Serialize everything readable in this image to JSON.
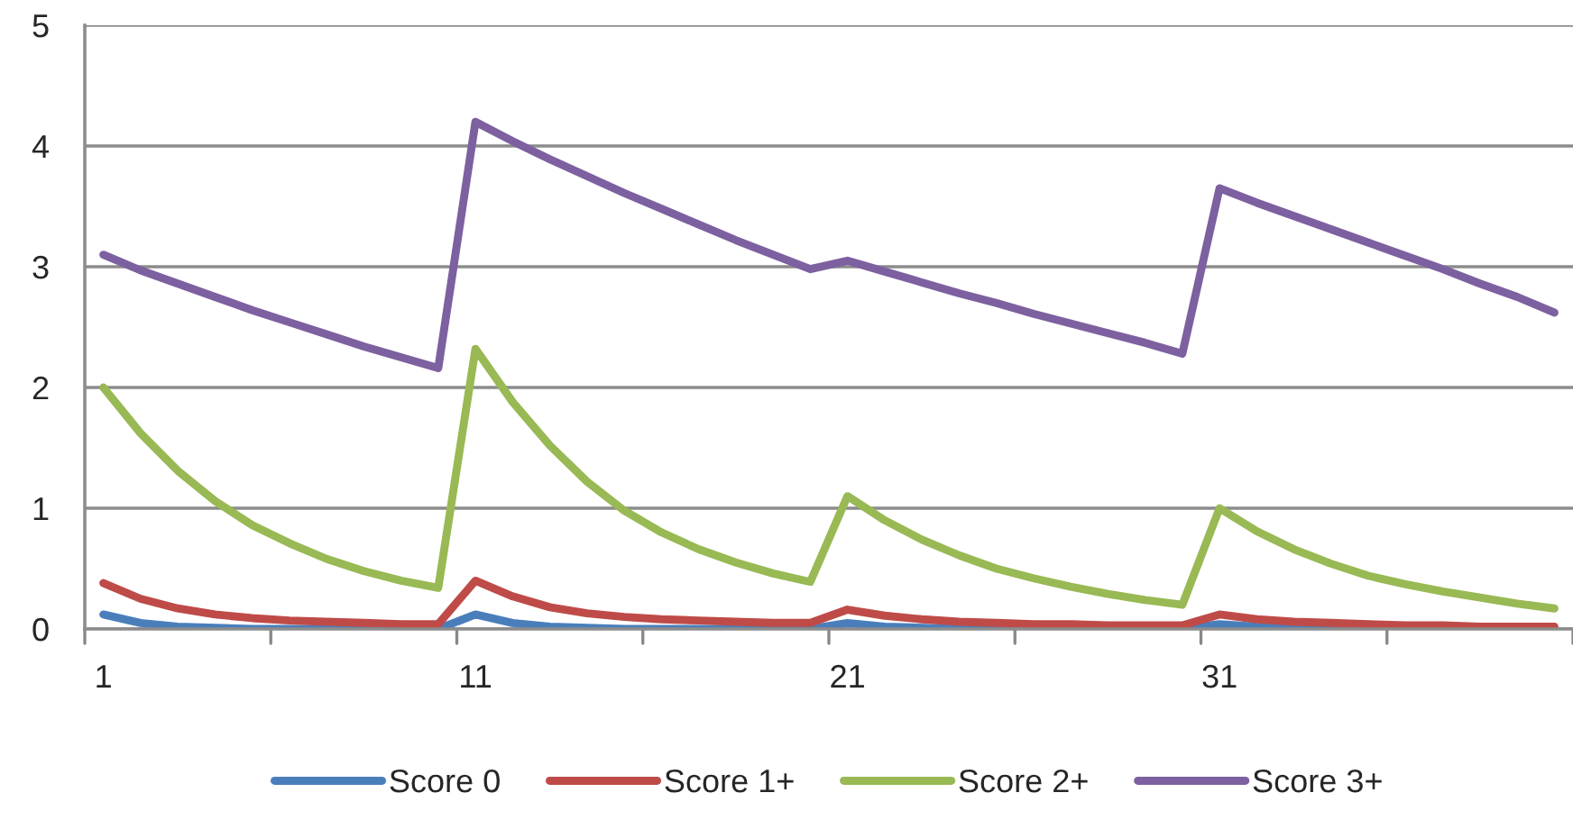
{
  "chart_data": {
    "type": "line",
    "categories": [
      "1",
      null,
      null,
      null,
      null,
      null,
      null,
      null,
      null,
      null,
      "11",
      null,
      null,
      null,
      null,
      null,
      null,
      null,
      null,
      null,
      "21",
      null,
      null,
      null,
      null,
      null,
      null,
      null,
      null,
      null,
      "31",
      null,
      null,
      null,
      null,
      null,
      null,
      null,
      null,
      null
    ],
    "series": [
      {
        "name": "Score 0",
        "color": "#4a7ebb",
        "values": [
          0.12,
          0.05,
          0.02,
          0.01,
          0,
          0,
          0,
          0,
          0,
          0,
          0.12,
          0.05,
          0.02,
          0.01,
          0,
          0,
          0,
          0,
          0,
          0,
          0.05,
          0.02,
          0.01,
          0,
          0,
          0,
          0,
          0,
          0,
          0,
          0.04,
          0.02,
          0.01,
          0,
          0,
          null,
          null,
          null,
          null,
          null
        ]
      },
      {
        "name": "Score 1+",
        "color": "#be4b48",
        "values": [
          0.38,
          0.25,
          0.17,
          0.12,
          0.09,
          0.07,
          0.06,
          0.05,
          0.04,
          0.04,
          0.4,
          0.27,
          0.18,
          0.13,
          0.1,
          0.08,
          0.07,
          0.06,
          0.05,
          0.05,
          0.16,
          0.11,
          0.08,
          0.06,
          0.05,
          0.04,
          0.04,
          0.03,
          0.03,
          0.03,
          0.12,
          0.08,
          0.06,
          0.05,
          0.04,
          0.03,
          0.03,
          0.02,
          0.02,
          0.02
        ]
      },
      {
        "name": "Score 2+",
        "color": "#98b954",
        "values": [
          2.0,
          1.62,
          1.31,
          1.06,
          0.86,
          0.71,
          0.58,
          0.48,
          0.4,
          0.34,
          2.32,
          1.88,
          1.52,
          1.22,
          0.98,
          0.8,
          0.66,
          0.55,
          0.46,
          0.39,
          1.1,
          0.9,
          0.74,
          0.61,
          0.5,
          0.42,
          0.35,
          0.29,
          0.24,
          0.2,
          1.0,
          0.81,
          0.66,
          0.54,
          0.44,
          0.37,
          0.31,
          0.26,
          0.21,
          0.17
        ]
      },
      {
        "name": "Score 3+",
        "color": "#7d60a0",
        "values": [
          3.1,
          2.97,
          2.86,
          2.75,
          2.64,
          2.54,
          2.44,
          2.34,
          2.25,
          2.16,
          4.2,
          4.04,
          3.89,
          3.75,
          3.61,
          3.48,
          3.35,
          3.22,
          3.1,
          2.98,
          3.05,
          2.96,
          2.87,
          2.78,
          2.7,
          2.61,
          2.53,
          2.45,
          2.37,
          2.28,
          3.65,
          3.53,
          3.42,
          3.31,
          3.2,
          3.09,
          2.98,
          2.86,
          2.75,
          2.62
        ]
      }
    ],
    "ylim": [
      0,
      5
    ],
    "yticks": [
      0,
      1,
      2,
      3,
      4,
      5
    ],
    "grid": "y",
    "legend": "bottom",
    "marker": "none",
    "line_style": "solid"
  }
}
